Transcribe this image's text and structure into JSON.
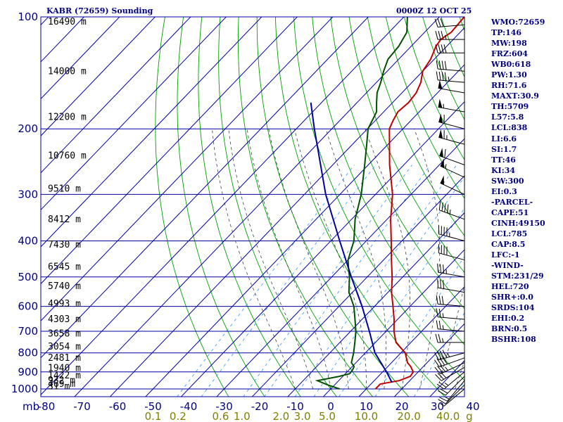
{
  "header": {
    "title": "KABR (72659) Sounding",
    "datetime": "0000Z 12 OCT 25"
  },
  "chart_data": {
    "type": "line",
    "title": "KABR (72659) Sounding",
    "x_axis": {
      "label": "",
      "ticks": [
        -80,
        -70,
        -60,
        -50,
        -40,
        -30,
        -20,
        -10,
        0,
        10,
        20,
        30,
        40
      ],
      "range": [
        -80,
        40
      ]
    },
    "y_axis": {
      "label": "mb",
      "scale": "log-pressure",
      "ticks": [
        100,
        200,
        300,
        400,
        500,
        600,
        700,
        800,
        900,
        1000
      ],
      "range": [
        100,
        1000
      ]
    },
    "mixing_ratio_labels": [
      {
        "text": "0.1",
        "t": -50
      },
      {
        "text": "0.2",
        "t": -43
      },
      {
        "text": "0.6",
        "t": -31
      },
      {
        "text": "1.0",
        "t": -25
      },
      {
        "text": "2.0",
        "t": -14
      },
      {
        "text": "3.0",
        "t": -8
      },
      {
        "text": "5.0",
        "t": -1
      },
      {
        "text": "10.0",
        "t": 10
      },
      {
        "text": "20.0",
        "t": 22
      },
      {
        "text": "40.0",
        "t": 33
      },
      {
        "text": "g",
        "t": 39
      }
    ],
    "height_labels": [
      {
        "text": "16490 m",
        "p": 103
      },
      {
        "text": "14000 m",
        "p": 140
      },
      {
        "text": "12200 m",
        "p": 186
      },
      {
        "text": "10760 m",
        "p": 236
      },
      {
        "text": "9510 m",
        "p": 290
      },
      {
        "text": "8412 m",
        "p": 350
      },
      {
        "text": "7430 m",
        "p": 410
      },
      {
        "text": "6545 m",
        "p": 470
      },
      {
        "text": "5740 m",
        "p": 530
      },
      {
        "text": "4993 m",
        "p": 590
      },
      {
        "text": "4303 m",
        "p": 650
      },
      {
        "text": "3658 m",
        "p": 710
      },
      {
        "text": "3054 m",
        "p": 770
      },
      {
        "text": "2481 m",
        "p": 825
      },
      {
        "text": "1940 m",
        "p": 880
      },
      {
        "text": "1422 m",
        "p": 920
      },
      {
        "text": "932 m",
        "p": 950
      },
      {
        "text": "469 m",
        "p": 970
      },
      {
        "text": "31 m",
        "p": 985
      }
    ],
    "series": [
      {
        "key": "temperature",
        "color": "#c00000",
        "points": [
          [
            1000,
            12.6
          ],
          [
            970,
            12.6
          ],
          [
            950,
            17
          ],
          [
            925,
            19
          ],
          [
            900,
            18.6
          ],
          [
            870,
            16.4
          ],
          [
            850,
            14.5
          ],
          [
            800,
            11.2
          ],
          [
            750,
            5.8
          ],
          [
            700,
            2.2
          ],
          [
            650,
            -1
          ],
          [
            600,
            -4.8
          ],
          [
            550,
            -9
          ],
          [
            500,
            -13
          ],
          [
            450,
            -17.8
          ],
          [
            400,
            -23
          ],
          [
            350,
            -29
          ],
          [
            300,
            -35.2
          ],
          [
            250,
            -44
          ],
          [
            200,
            -53.8
          ],
          [
            190,
            -55
          ],
          [
            180,
            -56
          ],
          [
            170,
            -55.5
          ],
          [
            160,
            -56
          ],
          [
            150,
            -57.5
          ],
          [
            140,
            -60
          ],
          [
            130,
            -61
          ],
          [
            120,
            -63
          ],
          [
            115,
            -63.5
          ],
          [
            110,
            -62.5
          ],
          [
            100,
            -63
          ]
        ]
      },
      {
        "key": "dewpoint",
        "color": "#005000",
        "points": [
          [
            1000,
            2.5
          ],
          [
            975,
            -2
          ],
          [
            950,
            -6
          ],
          [
            925,
            -1
          ],
          [
            910,
            1.2
          ],
          [
            890,
            1
          ],
          [
            870,
            0.5
          ],
          [
            850,
            -1.3
          ],
          [
            800,
            -3.3
          ],
          [
            750,
            -5.8
          ],
          [
            700,
            -8.5
          ],
          [
            650,
            -12
          ],
          [
            600,
            -15.8
          ],
          [
            550,
            -21
          ],
          [
            500,
            -25
          ],
          [
            470,
            -28
          ],
          [
            450,
            -30
          ],
          [
            400,
            -33.5
          ],
          [
            350,
            -39
          ],
          [
            300,
            -44
          ],
          [
            250,
            -51
          ],
          [
            220,
            -56
          ],
          [
            200,
            -59.8
          ],
          [
            180,
            -62
          ],
          [
            170,
            -64.5
          ],
          [
            160,
            -67
          ],
          [
            150,
            -68.8
          ],
          [
            140,
            -71
          ],
          [
            130,
            -73
          ],
          [
            120,
            -73.5
          ],
          [
            110,
            -75
          ],
          [
            100,
            -79
          ]
        ]
      },
      {
        "key": "parcel",
        "color": "#0000a0",
        "points": [
          [
            960,
            15.4
          ],
          [
            900,
            11.1
          ],
          [
            800,
            2.7
          ],
          [
            700,
            -4.7
          ],
          [
            600,
            -13.5
          ],
          [
            500,
            -24.5
          ],
          [
            400,
            -37.5
          ],
          [
            300,
            -54
          ],
          [
            200,
            -74.9
          ],
          [
            170,
            -83
          ]
        ]
      }
    ],
    "isotherm_step": 10,
    "dry_adiabat_thetas": [
      -30,
      -20,
      -10,
      0,
      10,
      20,
      30,
      40,
      50,
      60,
      70,
      80,
      90,
      100,
      110,
      120,
      130,
      140,
      150,
      160,
      170,
      180,
      190
    ],
    "moist_adiabat_t1000": [
      -10,
      -5,
      0,
      5,
      10,
      15,
      20,
      25,
      30,
      35,
      40
    ],
    "mixing_ratios_gkg": [
      0.1,
      0.2,
      0.6,
      1.0,
      2.0,
      3.0,
      5.0,
      10.0,
      20.0,
      40.0
    ],
    "wind_barbs": [
      {
        "p": 1000,
        "dir": 230,
        "spd": 5
      },
      {
        "p": 975,
        "dir": 225,
        "spd": 10
      },
      {
        "p": 950,
        "dir": 220,
        "spd": 15
      },
      {
        "p": 925,
        "dir": 225,
        "spd": 20
      },
      {
        "p": 900,
        "dir": 230,
        "spd": 25
      },
      {
        "p": 875,
        "dir": 240,
        "spd": 30
      },
      {
        "p": 850,
        "dir": 245,
        "spd": 35
      },
      {
        "p": 825,
        "dir": 250,
        "spd": 40
      },
      {
        "p": 800,
        "dir": 255,
        "spd": 45
      },
      {
        "p": 750,
        "dir": 270,
        "spd": 25
      },
      {
        "p": 700,
        "dir": 275,
        "spd": 25
      },
      {
        "p": 650,
        "dir": 275,
        "spd": 25
      },
      {
        "p": 600,
        "dir": 275,
        "spd": 30
      },
      {
        "p": 550,
        "dir": 280,
        "spd": 30
      },
      {
        "p": 500,
        "dir": 280,
        "spd": 35
      },
      {
        "p": 450,
        "dir": 285,
        "spd": 40
      },
      {
        "p": 400,
        "dir": 285,
        "spd": 45
      },
      {
        "p": 350,
        "dir": 290,
        "spd": 45
      },
      {
        "p": 300,
        "dir": 295,
        "spd": 50
      },
      {
        "p": 270,
        "dir": 295,
        "spd": 55
      },
      {
        "p": 250,
        "dir": 290,
        "spd": 60
      },
      {
        "p": 220,
        "dir": 285,
        "spd": 65
      },
      {
        "p": 200,
        "dir": 285,
        "spd": 60
      },
      {
        "p": 180,
        "dir": 280,
        "spd": 55
      },
      {
        "p": 160,
        "dir": 280,
        "spd": 50
      },
      {
        "p": 150,
        "dir": 275,
        "spd": 45
      },
      {
        "p": 140,
        "dir": 275,
        "spd": 40
      },
      {
        "p": 125,
        "dir": 270,
        "spd": 40
      },
      {
        "p": 115,
        "dir": 270,
        "spd": 35
      },
      {
        "p": 105,
        "dir": 265,
        "spd": 30
      }
    ],
    "colors": {
      "isobar": "#0000a0",
      "isotherm": "#0000a0",
      "dry_adiabat": "#00a000",
      "moist_adiabat": "#404040",
      "mixing_ratio": "#40a0ff",
      "barb": "#000000",
      "label": "#000080"
    }
  },
  "stats": [
    "WMO:72659",
    "TP:146",
    "MW:198",
    "FRZ:604",
    "WB0:618",
    "PW:1.30",
    "RH:71.6",
    "MAXT:30.9",
    "TH:5709",
    "L57:5.8",
    "LCL:838",
    "LI:6.6",
    "SI:1.7",
    "TT:46",
    "KI:34",
    "SW:300",
    "EI:0.3",
    "-PARCEL-",
    "CAPE:51",
    "CINH:49150",
    "LCL:785",
    "CAP:8.5",
    "LFC:-1",
    "-WIND-",
    "STM:231/29",
    "HEL:720",
    "SHR+:0.0",
    "SRDS:104",
    "EHI:0.2",
    "BRN:0.5",
    "BSHR:108"
  ]
}
